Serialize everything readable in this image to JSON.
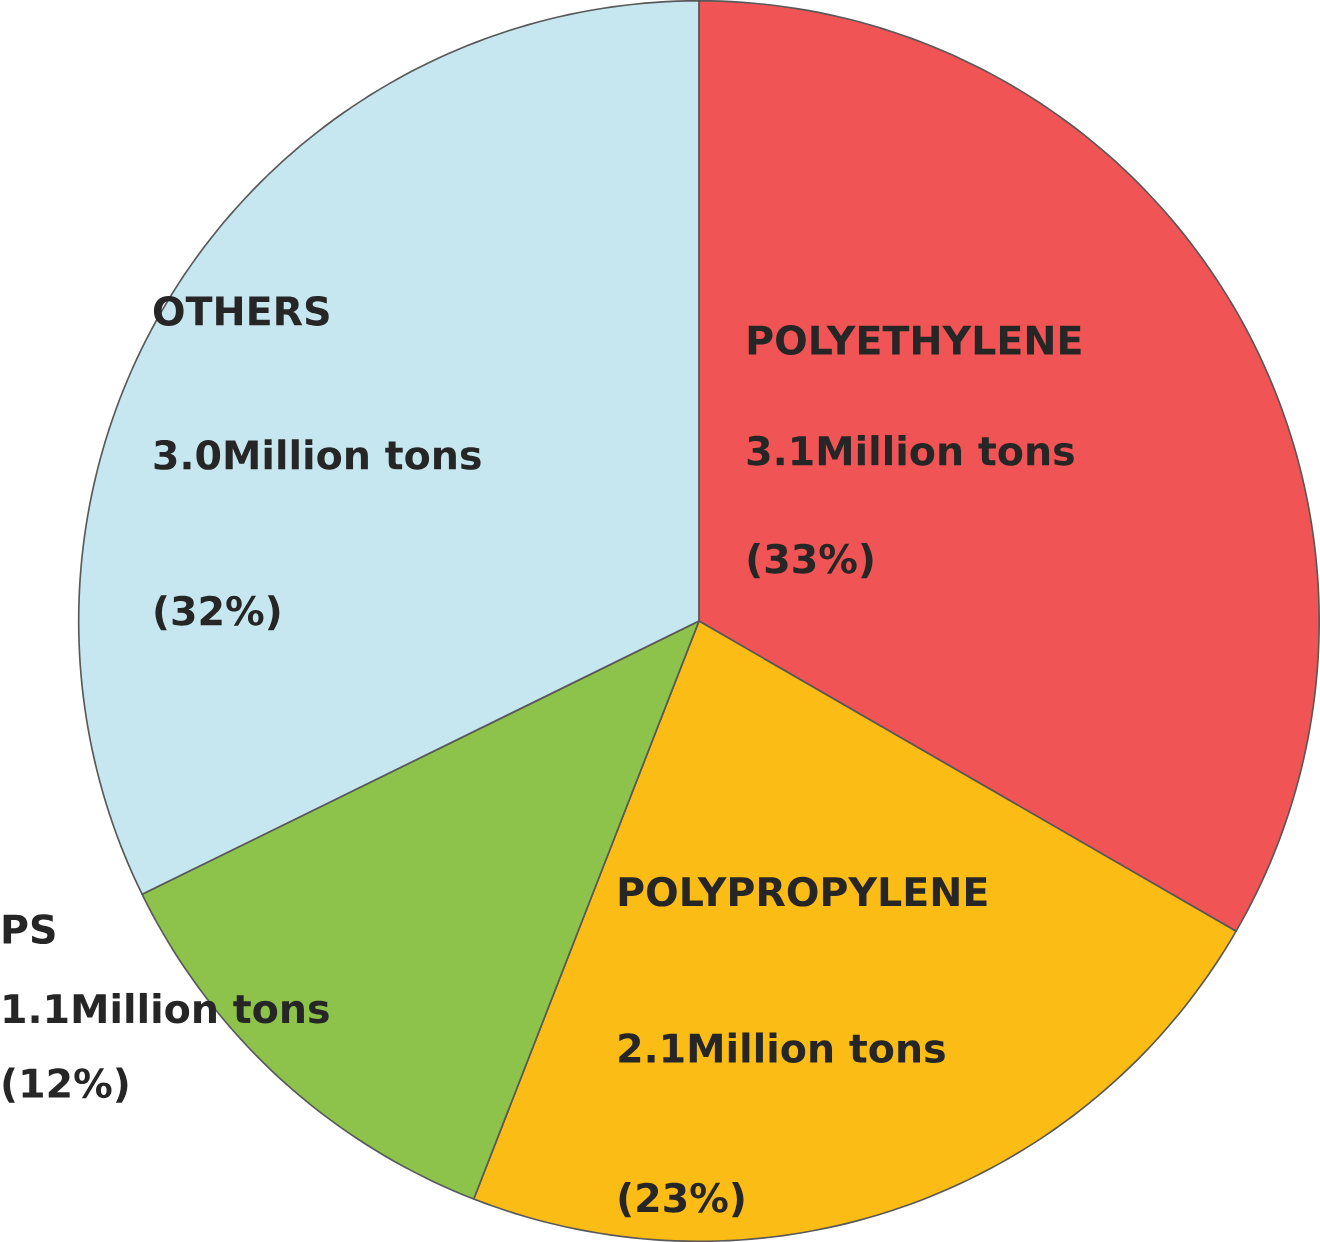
{
  "chart_data": {
    "type": "pie",
    "categories": [
      "POLYETHYLENE",
      "POLYPROPYLENE",
      "PS",
      "OTHERS"
    ],
    "values": [
      3.1,
      2.1,
      1.1,
      3.0
    ],
    "colors": [
      "#f05455",
      "#fbbc16",
      "#8dc34b",
      "#c6e7ef"
    ],
    "value_labels": [
      "3.1Million tons",
      "2.1Million tons",
      "1.1Million tons",
      "3.0Million tons"
    ],
    "annotations": [
      "(33%)",
      "(23%)",
      "(12%)",
      "(32%)"
    ]
  }
}
